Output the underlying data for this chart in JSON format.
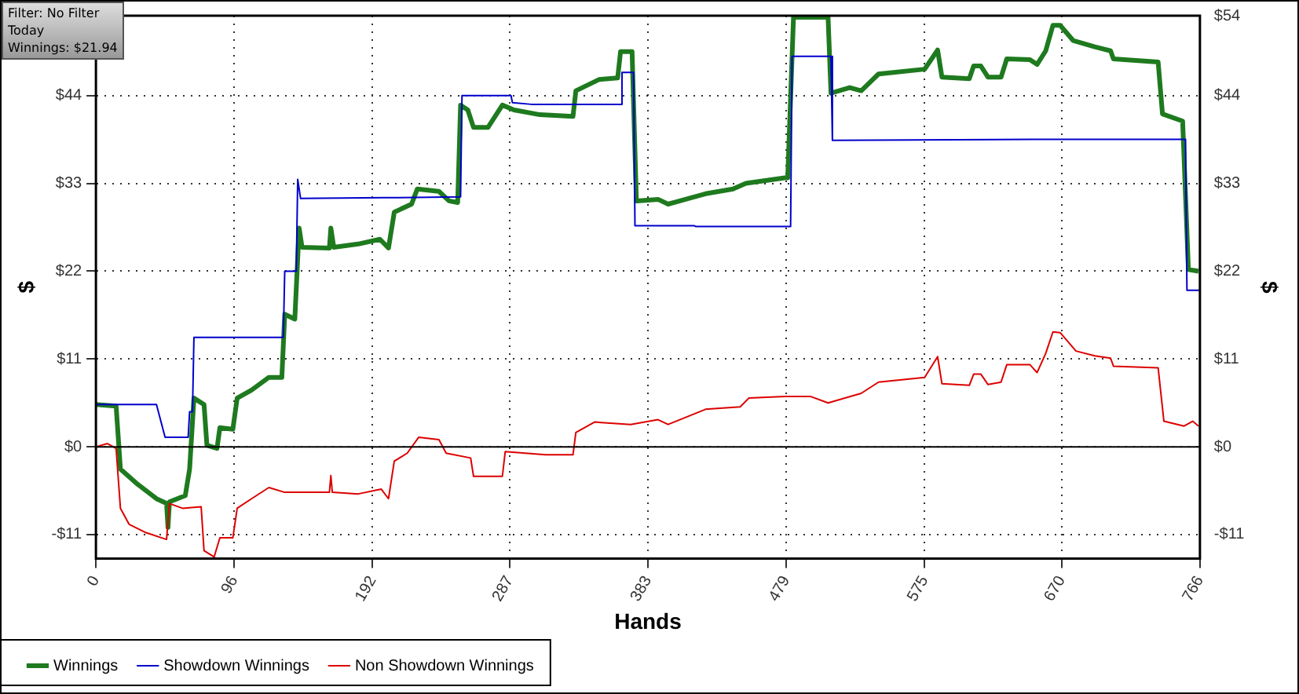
{
  "chart_data": {
    "type": "line",
    "xlabel": "Hands",
    "ylabel": "$",
    "y2label": "$",
    "annotations": [
      "Filter: No Filter",
      "Today",
      "Winnings: $21.94"
    ],
    "xlim": [
      0,
      766
    ],
    "xticks": [
      0,
      96,
      192,
      287,
      383,
      479,
      575,
      670,
      766
    ],
    "ylim": [
      -14,
      54
    ],
    "yticks": [
      {
        "value": -11,
        "label": "-$11"
      },
      {
        "value": 0,
        "label": "$0"
      },
      {
        "value": 11,
        "label": "$11"
      },
      {
        "value": 22,
        "label": "$22"
      },
      {
        "value": 33,
        "label": "$33"
      },
      {
        "value": 44,
        "label": "$44"
      }
    ],
    "y2lim": [
      -14,
      54
    ],
    "y2ticks": [
      {
        "value": -11,
        "label": "-$11"
      },
      {
        "value": 0,
        "label": "$0"
      },
      {
        "value": 11,
        "label": "$11"
      },
      {
        "value": 22,
        "label": "$22"
      },
      {
        "value": 33,
        "label": "$33"
      },
      {
        "value": 44,
        "label": "$44"
      },
      {
        "value": 54,
        "label": "$54"
      }
    ],
    "grid": true,
    "legend": "bottom",
    "marker": "none",
    "line_style": "solid",
    "ref_lines": [
      {
        "axis": "y",
        "value": 0,
        "color": "#000000"
      }
    ],
    "series": [
      {
        "name": "Winnings",
        "color": "#1e7a1e",
        "x": [
          0,
          14,
          17,
          29,
          42,
          49,
          50,
          51,
          62,
          65,
          68,
          75,
          77,
          84,
          86,
          95,
          98,
          108,
          120,
          129,
          131,
          138,
          141,
          143,
          162,
          163,
          165,
          182,
          197,
          203,
          207,
          219,
          223,
          238,
          245,
          251,
          253,
          258,
          262,
          272,
          282,
          290,
          308,
          331,
          333,
          349,
          362,
          364,
          372,
          375,
          390,
          397,
          423,
          442,
          451,
          478,
          480,
          484,
          508,
          510,
          523,
          531,
          543,
          575,
          584,
          587,
          606,
          609,
          614,
          619,
          628,
          632,
          648,
          653,
          659,
          664,
          669,
          678,
          693,
          704,
          706,
          737,
          740,
          754,
          758,
          765
        ],
        "values": [
          5.3,
          5.1,
          -2.8,
          -4.7,
          -6.5,
          -7.1,
          -10.1,
          -6.9,
          -6.1,
          -2.8,
          6.1,
          5.3,
          0.2,
          -0.2,
          2.4,
          2.2,
          6.1,
          7.1,
          8.7,
          8.7,
          16.6,
          16,
          27.4,
          25,
          24.9,
          27.4,
          25,
          25.4,
          26,
          24.9,
          29.4,
          30.4,
          32.3,
          32,
          30.8,
          30.6,
          42.8,
          42.2,
          40,
          40,
          42.8,
          42.2,
          41.6,
          41.4,
          44.6,
          46,
          46.2,
          49.5,
          49.5,
          30.8,
          31,
          30.4,
          31.7,
          32.3,
          33,
          33.7,
          33.7,
          53.8,
          53.8,
          44.3,
          45,
          44.6,
          46.7,
          47.3,
          49.7,
          46.3,
          46.1,
          47.7,
          47.7,
          46.3,
          46.3,
          48.6,
          48.5,
          47.9,
          49.6,
          52.8,
          52.8,
          50.9,
          50.1,
          49.6,
          48.6,
          48.2,
          41.7,
          40.8,
          22.2,
          22
        ]
      },
      {
        "name": "Showdown Winnings",
        "color": "#0000cc",
        "x": [
          0,
          42,
          48,
          64,
          65,
          67,
          68,
          130,
          131,
          139,
          140,
          142,
          200,
          253,
          254,
          288,
          289,
          302,
          364,
          365,
          373,
          374,
          415,
          416,
          482,
          483,
          510,
          511,
          650,
          756,
          757,
          766
        ],
        "values": [
          5.3,
          5.3,
          1.2,
          1.2,
          4.4,
          4.4,
          13.7,
          13.7,
          22,
          22,
          33.5,
          31.1,
          31.2,
          31.3,
          44,
          44,
          43.1,
          42.9,
          42.9,
          46.9,
          46.9,
          27.7,
          27.7,
          27.6,
          27.6,
          48.9,
          48.9,
          38.4,
          38.5,
          38.5,
          19.6,
          19.6
        ]
      },
      {
        "name": "Non Showdown Winnings",
        "color": "#dd0000",
        "x": [
          0,
          8,
          14,
          17,
          23,
          34,
          49,
          51,
          60,
          73,
          75,
          82,
          86,
          95,
          98,
          108,
          120,
          131,
          162,
          163,
          164,
          182,
          198,
          203,
          207,
          216,
          224,
          238,
          243,
          260,
          262,
          282,
          284,
          312,
          331,
          333,
          346,
          371,
          390,
          397,
          423,
          447,
          453,
          478,
          496,
          508,
          531,
          543,
          575,
          584,
          587,
          606,
          609,
          614,
          619,
          628,
          632,
          648,
          653,
          659,
          664,
          669,
          680,
          693,
          704,
          706,
          737,
          741,
          755,
          761,
          765
        ],
        "values": [
          0,
          0.4,
          -0.2,
          -7.7,
          -9.7,
          -10.7,
          -11.6,
          -7.1,
          -7.7,
          -7.5,
          -13,
          -13.8,
          -11.4,
          -11.4,
          -7.7,
          -6.5,
          -5.1,
          -5.7,
          -5.7,
          -3.6,
          -5.7,
          -5.9,
          -5.3,
          -6.5,
          -1.8,
          -0.8,
          1.2,
          0.9,
          -0.8,
          -1.4,
          -3.7,
          -3.7,
          -0.6,
          -1,
          -1,
          1.8,
          3.1,
          2.8,
          3.4,
          2.8,
          4.7,
          5,
          6.1,
          6.3,
          6.3,
          5.5,
          6.7,
          8.1,
          8.7,
          11.3,
          7.9,
          7.7,
          9.1,
          9.1,
          7.8,
          8.1,
          10.3,
          10.3,
          9.3,
          11.7,
          14.4,
          14.3,
          12,
          11.4,
          11.1,
          10.1,
          9.9,
          3.2,
          2.6,
          3.2,
          2.6
        ]
      }
    ]
  }
}
